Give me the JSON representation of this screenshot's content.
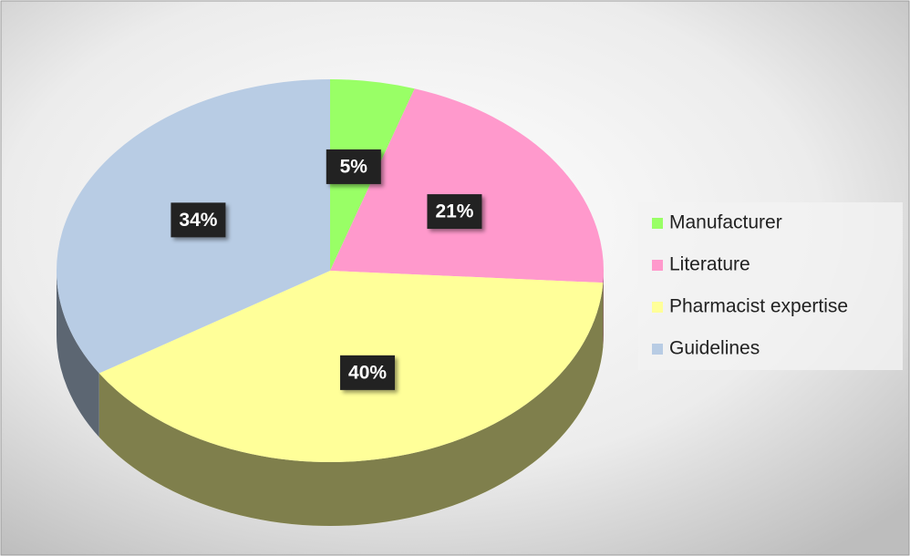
{
  "chart_data": {
    "type": "pie",
    "categories": [
      "Manufacturer",
      "Literature",
      "Pharmacist expertise",
      "Guidelines"
    ],
    "values": [
      5,
      21,
      40,
      34
    ],
    "value_labels": [
      "5%",
      "21%",
      "40%",
      "34%"
    ],
    "colors": [
      "#99ff66",
      "#ff99cc",
      "#ffff99",
      "#b8cce4"
    ],
    "legend": "right"
  }
}
